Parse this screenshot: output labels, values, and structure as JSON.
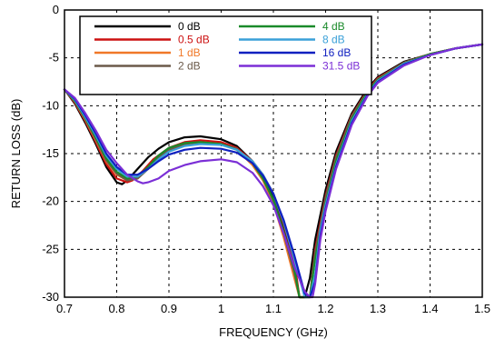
{
  "chart_data": {
    "type": "line",
    "title": "",
    "xlabel": "FREQUENCY (GHz)",
    "ylabel": "RETURN LOSS (dB)",
    "xlim": [
      0.7,
      1.5
    ],
    "ylim": [
      -30,
      0
    ],
    "xticks": [
      "0.7",
      "0.8",
      "0.9",
      "1",
      "1.1",
      "1.2",
      "1.3",
      "1.4",
      "1.5"
    ],
    "yticks": [
      "0",
      "-5",
      "-10",
      "-15",
      "-20",
      "-25",
      "-30"
    ],
    "grid": true,
    "legend_position": "top-left",
    "series": [
      {
        "name": "0 dB",
        "color": "#000000",
        "x": [
          0.7,
          0.72,
          0.74,
          0.76,
          0.78,
          0.8,
          0.81,
          0.82,
          0.84,
          0.86,
          0.88,
          0.9,
          0.93,
          0.96,
          1.0,
          1.03,
          1.06,
          1.08,
          1.1,
          1.12,
          1.14,
          1.15,
          1.16,
          1.17,
          1.18,
          1.2,
          1.22,
          1.25,
          1.28,
          1.3,
          1.35,
          1.4,
          1.45,
          1.5
        ],
        "y": [
          -8.3,
          -9.8,
          -11.8,
          -14.0,
          -16.4,
          -18.0,
          -18.2,
          -17.8,
          -16.6,
          -15.4,
          -14.5,
          -13.8,
          -13.3,
          -13.2,
          -13.5,
          -14.2,
          -15.8,
          -17.4,
          -19.6,
          -23.0,
          -26.8,
          -30.0,
          -30.0,
          -28.0,
          -24.0,
          -18.8,
          -14.8,
          -10.8,
          -8.2,
          -7.0,
          -5.4,
          -4.6,
          -4.0,
          -3.6
        ]
      },
      {
        "name": "0.5 dB",
        "color": "#cc1010",
        "x": [
          0.7,
          0.72,
          0.74,
          0.76,
          0.78,
          0.8,
          0.82,
          0.83,
          0.85,
          0.87,
          0.9,
          0.93,
          0.96,
          1.0,
          1.03,
          1.06,
          1.08,
          1.1,
          1.12,
          1.14,
          1.15,
          1.16,
          1.17,
          1.18,
          1.2,
          1.22,
          1.25,
          1.28,
          1.3,
          1.35,
          1.4,
          1.45,
          1.5
        ],
        "y": [
          -8.3,
          -9.7,
          -11.6,
          -13.8,
          -16.1,
          -17.6,
          -18.0,
          -17.8,
          -16.8,
          -15.6,
          -14.4,
          -13.8,
          -13.6,
          -13.8,
          -14.4,
          -15.8,
          -17.2,
          -19.2,
          -22.4,
          -26.2,
          -30.0,
          -30.0,
          -30.0,
          -25.0,
          -19.4,
          -15.2,
          -11.0,
          -8.4,
          -7.1,
          -5.5,
          -4.6,
          -4.0,
          -3.6
        ]
      },
      {
        "name": "1 dB",
        "color": "#f07828",
        "x": [
          0.7,
          0.72,
          0.74,
          0.76,
          0.78,
          0.8,
          0.82,
          0.84,
          0.86,
          0.88,
          0.9,
          0.93,
          0.96,
          1.0,
          1.03,
          1.06,
          1.08,
          1.1,
          1.12,
          1.14,
          1.15,
          1.16,
          1.17,
          1.18,
          1.2,
          1.22,
          1.25,
          1.28,
          1.3,
          1.35,
          1.4,
          1.45,
          1.5
        ],
        "y": [
          -8.3,
          -9.6,
          -11.5,
          -13.6,
          -15.8,
          -17.2,
          -17.8,
          -17.6,
          -16.5,
          -15.3,
          -14.6,
          -14.0,
          -13.8,
          -14.0,
          -14.6,
          -16.2,
          -17.8,
          -20.2,
          -23.8,
          -28.0,
          -30.0,
          -30.0,
          -30.0,
          -25.6,
          -19.8,
          -15.6,
          -11.2,
          -8.6,
          -7.2,
          -5.5,
          -4.6,
          -4.0,
          -3.6
        ]
      },
      {
        "name": "2 dB",
        "color": "#6b5a4a",
        "x": [
          0.7,
          0.72,
          0.74,
          0.76,
          0.78,
          0.8,
          0.82,
          0.84,
          0.86,
          0.88,
          0.9,
          0.93,
          0.96,
          1.0,
          1.03,
          1.06,
          1.08,
          1.1,
          1.12,
          1.14,
          1.15,
          1.16,
          1.17,
          1.18,
          1.2,
          1.22,
          1.25,
          1.28,
          1.3,
          1.35,
          1.4,
          1.45,
          1.5
        ],
        "y": [
          -8.3,
          -9.6,
          -11.4,
          -13.5,
          -15.7,
          -17.1,
          -17.8,
          -17.6,
          -16.6,
          -15.4,
          -14.6,
          -14.0,
          -13.8,
          -14.0,
          -14.5,
          -16.0,
          -17.6,
          -19.9,
          -23.4,
          -27.4,
          -30.0,
          -30.0,
          -30.0,
          -25.4,
          -19.6,
          -15.4,
          -11.1,
          -8.5,
          -7.2,
          -5.5,
          -4.6,
          -4.0,
          -3.6
        ]
      },
      {
        "name": "4 dB",
        "color": "#1a8a2a",
        "x": [
          0.7,
          0.72,
          0.74,
          0.76,
          0.78,
          0.8,
          0.82,
          0.84,
          0.86,
          0.88,
          0.9,
          0.93,
          0.96,
          1.0,
          1.03,
          1.06,
          1.08,
          1.1,
          1.12,
          1.14,
          1.15,
          1.16,
          1.17,
          1.18,
          1.2,
          1.22,
          1.25,
          1.28,
          1.3,
          1.35,
          1.4,
          1.45,
          1.5
        ],
        "y": [
          -8.3,
          -9.5,
          -11.3,
          -13.3,
          -15.5,
          -16.9,
          -17.6,
          -17.4,
          -16.4,
          -15.2,
          -14.4,
          -13.9,
          -13.8,
          -14.0,
          -14.6,
          -16.0,
          -17.6,
          -19.8,
          -23.2,
          -27.0,
          -30.0,
          -30.0,
          -30.0,
          -26.0,
          -20.2,
          -15.8,
          -11.4,
          -8.6,
          -7.3,
          -5.6,
          -4.6,
          -4.0,
          -3.6
        ]
      },
      {
        "name": "8 dB",
        "color": "#3aa0d8",
        "x": [
          0.7,
          0.72,
          0.74,
          0.76,
          0.78,
          0.8,
          0.82,
          0.84,
          0.86,
          0.88,
          0.9,
          0.93,
          0.96,
          1.0,
          1.03,
          1.06,
          1.08,
          1.1,
          1.12,
          1.14,
          1.16,
          1.17,
          1.18,
          1.19,
          1.2,
          1.22,
          1.25,
          1.28,
          1.3,
          1.35,
          1.4,
          1.45,
          1.5
        ],
        "y": [
          -8.3,
          -9.4,
          -11.2,
          -13.1,
          -15.2,
          -16.6,
          -17.4,
          -17.4,
          -16.6,
          -15.6,
          -14.8,
          -14.2,
          -14.0,
          -14.1,
          -14.6,
          -15.8,
          -17.2,
          -19.2,
          -22.2,
          -26.0,
          -30.0,
          -30.0,
          -27.6,
          -23.0,
          -20.4,
          -16.2,
          -11.6,
          -8.8,
          -7.4,
          -5.6,
          -4.7,
          -4.0,
          -3.6
        ]
      },
      {
        "name": "16 dB",
        "color": "#1020c0",
        "x": [
          0.7,
          0.72,
          0.74,
          0.76,
          0.78,
          0.8,
          0.82,
          0.84,
          0.86,
          0.88,
          0.9,
          0.93,
          0.96,
          1.0,
          1.03,
          1.06,
          1.08,
          1.1,
          1.12,
          1.14,
          1.16,
          1.17,
          1.18,
          1.19,
          1.2,
          1.22,
          1.25,
          1.28,
          1.3,
          1.35,
          1.4,
          1.45,
          1.5
        ],
        "y": [
          -8.3,
          -9.3,
          -11.0,
          -12.9,
          -15.0,
          -16.4,
          -17.2,
          -17.2,
          -16.6,
          -15.8,
          -15.1,
          -14.6,
          -14.4,
          -14.5,
          -14.9,
          -16.0,
          -17.3,
          -19.2,
          -22.0,
          -25.6,
          -29.6,
          -30.0,
          -28.4,
          -23.6,
          -20.8,
          -16.4,
          -11.8,
          -8.9,
          -7.5,
          -5.7,
          -4.7,
          -4.0,
          -3.6
        ]
      },
      {
        "name": "31.5 dB",
        "color": "#7b2fd6",
        "x": [
          0.7,
          0.72,
          0.74,
          0.76,
          0.78,
          0.8,
          0.82,
          0.84,
          0.85,
          0.86,
          0.88,
          0.9,
          0.93,
          0.96,
          1.0,
          1.03,
          1.06,
          1.08,
          1.1,
          1.12,
          1.14,
          1.16,
          1.17,
          1.175,
          1.18,
          1.19,
          1.2,
          1.22,
          1.25,
          1.28,
          1.3,
          1.35,
          1.4,
          1.45,
          1.5
        ],
        "y": [
          -8.3,
          -9.2,
          -10.8,
          -12.6,
          -14.6,
          -16.0,
          -17.2,
          -17.9,
          -18.1,
          -18.0,
          -17.6,
          -16.8,
          -16.2,
          -15.8,
          -15.6,
          -15.9,
          -17.0,
          -18.4,
          -20.4,
          -23.4,
          -26.8,
          -29.4,
          -30.0,
          -30.0,
          -28.6,
          -24.0,
          -21.0,
          -16.6,
          -12.0,
          -9.0,
          -7.6,
          -5.8,
          -4.7,
          -4.0,
          -3.6
        ]
      }
    ]
  }
}
